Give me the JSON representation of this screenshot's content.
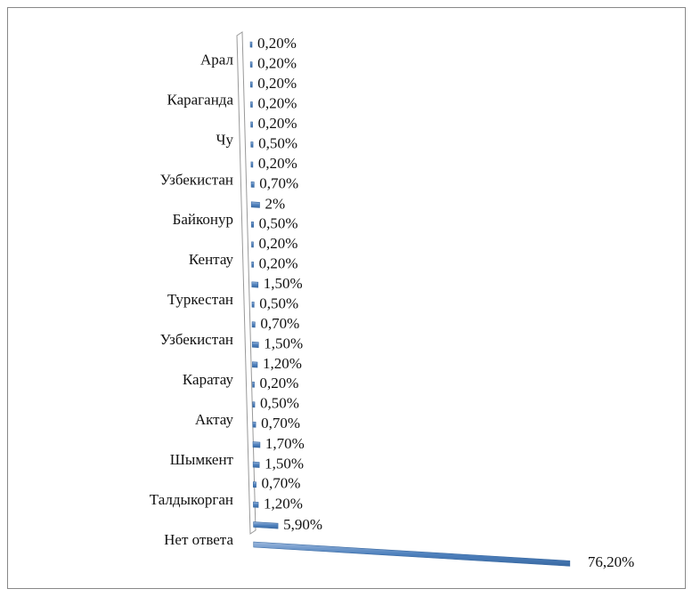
{
  "chart_data": {
    "type": "bar3d_horizontal",
    "categories": [
      null,
      "Арал",
      null,
      "Караганда",
      null,
      "Чу",
      null,
      "Узбекистан",
      null,
      "Байконур",
      null,
      "Кентау",
      null,
      "Туркестан",
      null,
      "Узбекистан",
      null,
      "Каратау",
      null,
      "Актау",
      null,
      "Шымкент",
      null,
      "Талдыкорган",
      null,
      "Нет ответа"
    ],
    "values": [
      0.2,
      0.2,
      0.2,
      0.2,
      0.2,
      0.5,
      0.2,
      0.7,
      2,
      0.5,
      0.2,
      0.2,
      1.5,
      0.5,
      0.7,
      1.5,
      1.2,
      0.2,
      0.5,
      0.7,
      1.7,
      1.5,
      0.7,
      1.2,
      5.9,
      76.2
    ],
    "value_labels": [
      "0,20%",
      "0,20%",
      "0,20%",
      "0,20%",
      "0,20%",
      "0,50%",
      "0,20%",
      "0,70%",
      "2%",
      "0,50%",
      "0,20%",
      "0,20%",
      "1,50%",
      "0,50%",
      "0,70%",
      "1,50%",
      "1,20%",
      "0,20%",
      "0,50%",
      "0,70%",
      "1,70%",
      "1,50%",
      "0,70%",
      "1,20%",
      "5,90%",
      "76,20%"
    ],
    "color": "#4f81bd"
  }
}
